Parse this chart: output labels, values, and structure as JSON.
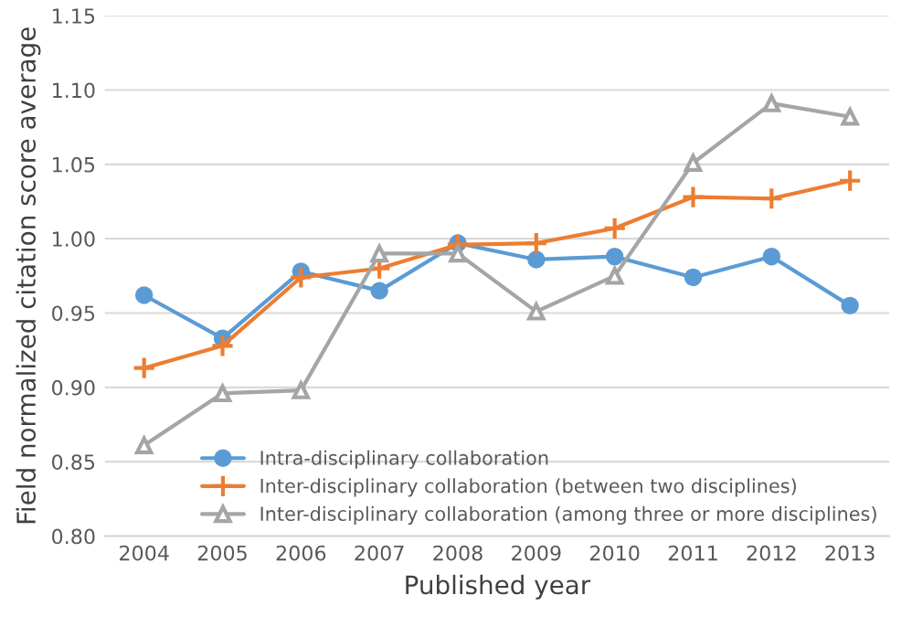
{
  "chart_data": {
    "type": "line",
    "xlabel": "Published year",
    "ylabel": "Field normalized citation score average",
    "categories": [
      "2004",
      "2005",
      "2006",
      "2007",
      "2008",
      "2009",
      "2010",
      "2011",
      "2012",
      "2013"
    ],
    "series": [
      {
        "name": "Intra-disciplinary collaboration",
        "color": "#5b9bd5",
        "marker": "circle",
        "values": [
          0.962,
          0.933,
          0.978,
          0.965,
          0.997,
          0.986,
          0.988,
          0.974,
          0.988,
          0.955
        ]
      },
      {
        "name": "Inter-disciplinary collaboration (between two disciplines)",
        "color": "#ed7d31",
        "marker": "cross",
        "values": [
          0.913,
          0.928,
          0.974,
          0.98,
          0.996,
          0.997,
          1.007,
          1.028,
          1.027,
          1.039
        ]
      },
      {
        "name": "Inter-disciplinary collaboration (among three or more disciplines)",
        "color": "#a5a5a5",
        "marker": "triangle",
        "values": [
          0.861,
          0.896,
          0.898,
          0.99,
          0.99,
          0.951,
          0.975,
          1.051,
          1.091,
          1.082
        ]
      }
    ],
    "ylim": [
      0.8,
      1.15
    ],
    "yticks": [
      {
        "value": 0.8,
        "label": "0.80"
      },
      {
        "value": 0.85,
        "label": "0.85"
      },
      {
        "value": 0.9,
        "label": "0.90"
      },
      {
        "value": 0.95,
        "label": "0.95"
      },
      {
        "value": 1.0,
        "label": "1.00"
      },
      {
        "value": 1.05,
        "label": "1.05"
      },
      {
        "value": 1.1,
        "label": "1.10"
      },
      {
        "value": 1.15,
        "label": "1.15"
      }
    ],
    "grid": "y",
    "legend": "bottom right",
    "line_style": "solid"
  }
}
